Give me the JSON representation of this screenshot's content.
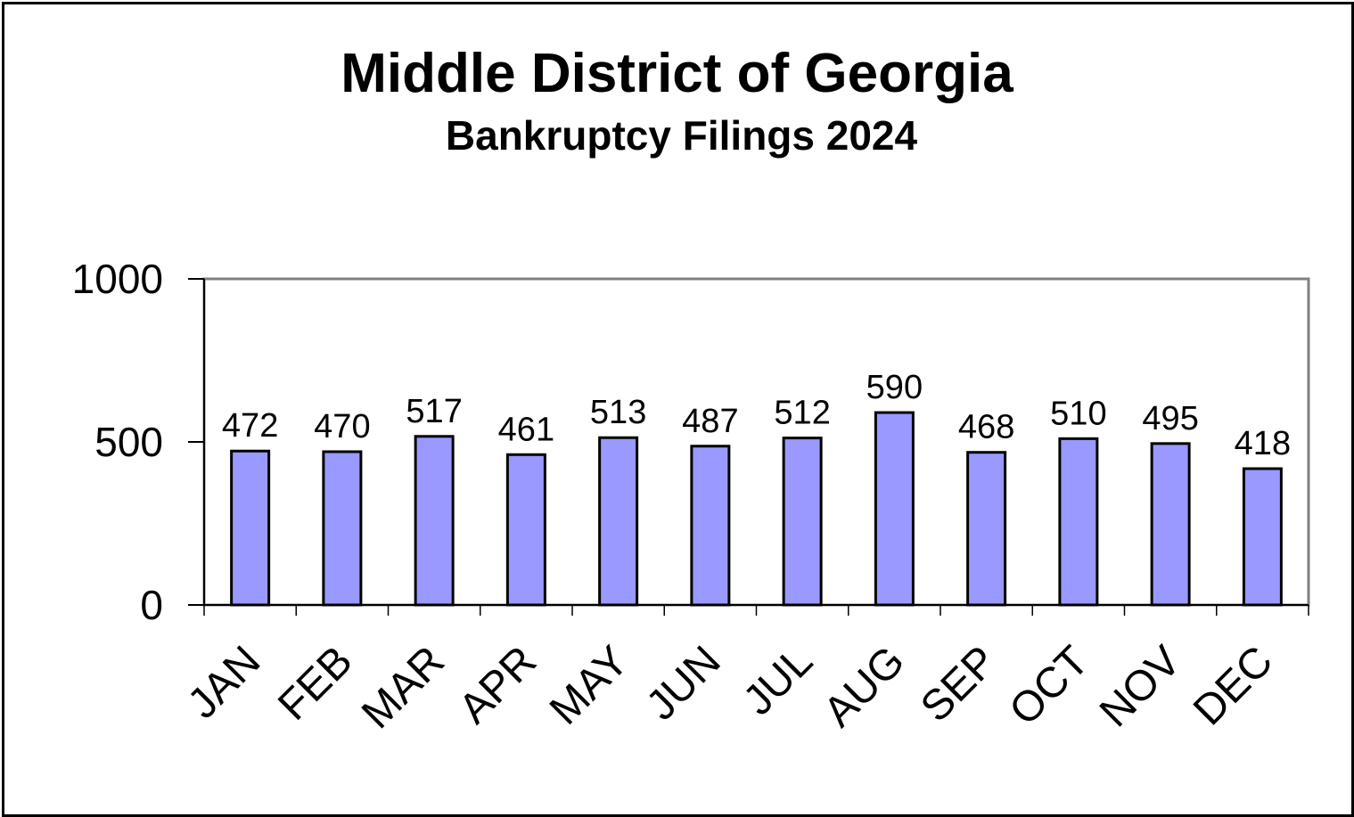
{
  "chart_data": {
    "type": "bar",
    "title": "Middle District of Georgia",
    "subtitle": "Bankruptcy Filings 2024",
    "categories": [
      "JAN",
      "FEB",
      "MAR",
      "APR",
      "MAY",
      "JUN",
      "JUL",
      "AUG",
      "SEP",
      "OCT",
      "NOV",
      "DEC"
    ],
    "values": [
      472,
      470,
      517,
      461,
      513,
      487,
      512,
      590,
      468,
      510,
      495,
      418
    ],
    "ylim": [
      0,
      1000
    ],
    "yticks": [
      "0",
      "500",
      "1000"
    ],
    "xlabel": "",
    "ylabel": "",
    "grid": false,
    "legend": "none",
    "colors": {
      "bar_fill": "#9999ff",
      "bar_stroke": "#000000",
      "plot_border": "#808080",
      "axis": "#000000"
    }
  }
}
